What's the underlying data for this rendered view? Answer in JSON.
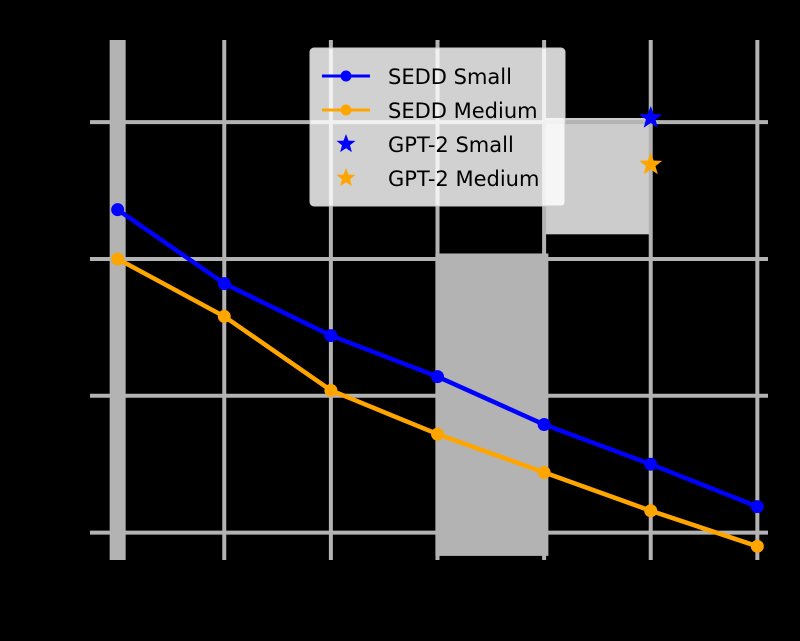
{
  "chart_data": {
    "type": "line",
    "title": "",
    "xlabel": "",
    "ylabel": "",
    "x": [
      0,
      1,
      2,
      3,
      4,
      5,
      6
    ],
    "xlim": [
      -0.1,
      6.1
    ],
    "ylim": [
      0.8,
      4.6
    ],
    "grid": true,
    "legend_position": "top-center",
    "series": [
      {
        "name": "SEDD Small",
        "color": "#0000ff",
        "marker": "circle",
        "values": [
          3.36,
          2.82,
          2.44,
          2.14,
          1.79,
          1.5,
          1.19
        ]
      },
      {
        "name": "SEDD Medium",
        "color": "#ffa500",
        "marker": "circle",
        "values": [
          3.0,
          2.58,
          2.04,
          1.72,
          1.44,
          1.16,
          0.9
        ]
      }
    ],
    "points": [
      {
        "name": "GPT-2 Small",
        "color": "#0000ff",
        "marker": "star",
        "x": 5,
        "y": 4.03
      },
      {
        "name": "GPT-2 Medium",
        "color": "#ffa500",
        "marker": "star",
        "x": 5,
        "y": 3.69
      }
    ],
    "background_shading": [
      {
        "color": "#b3b3b3",
        "x_range": [
          2.98,
          4.04
        ],
        "y_range": [
          0.83,
          3.04
        ]
      },
      {
        "color": "#cccccc",
        "x_range": [
          4.0,
          5.0
        ],
        "y_range": [
          3.18,
          4.03
        ]
      }
    ]
  }
}
